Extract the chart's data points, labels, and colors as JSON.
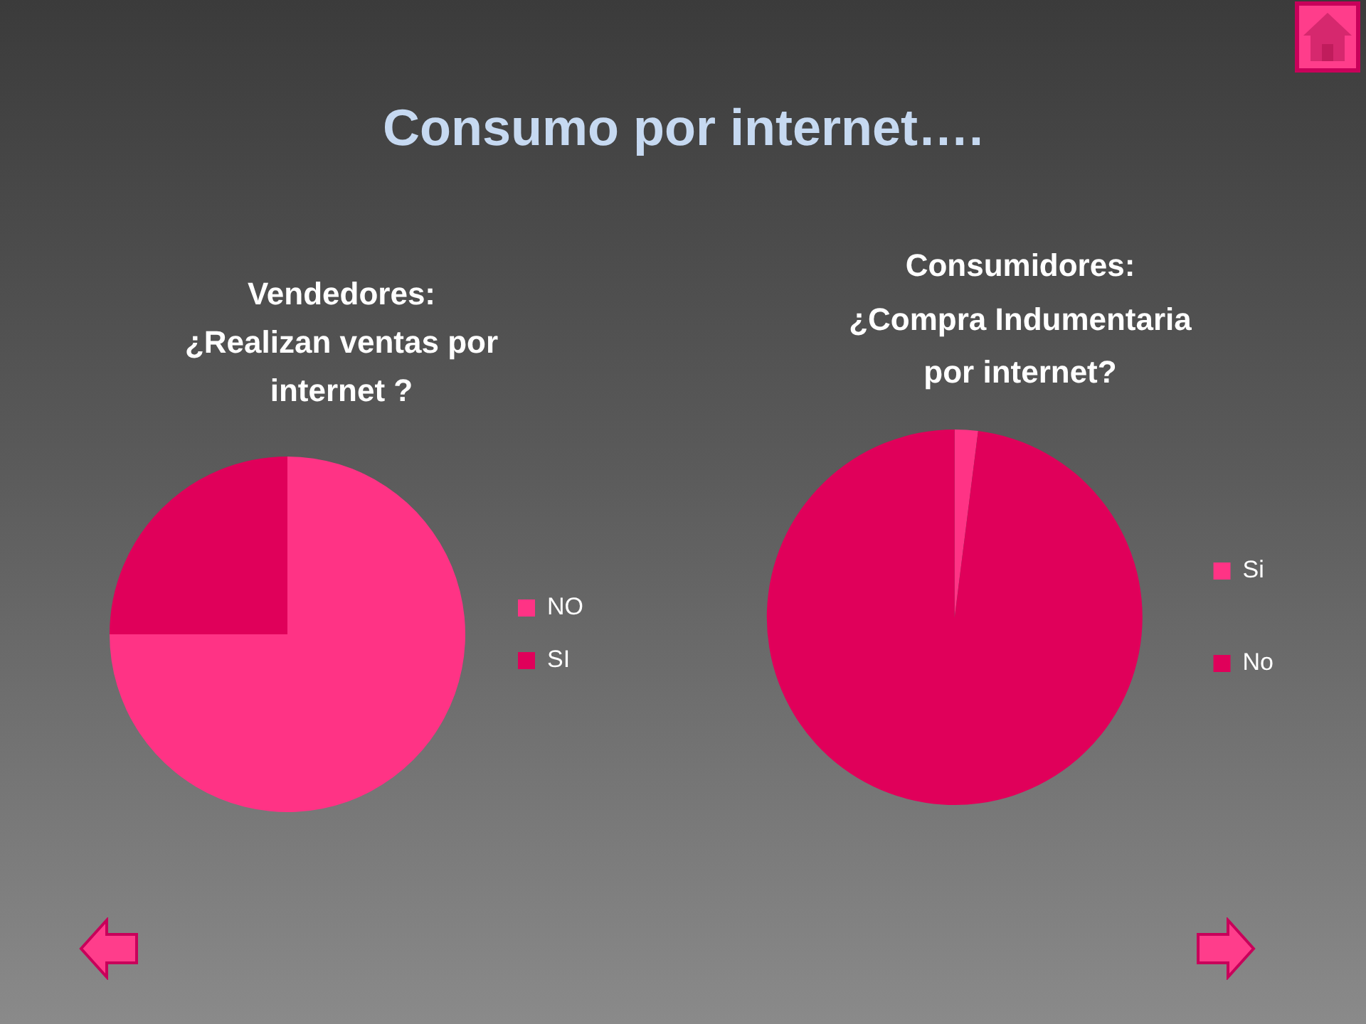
{
  "chart_data": [
    {
      "type": "other",
      "title": "Consumo por internet…."
    },
    {
      "type": "pie",
      "title": "Vendedores:\n¿Realizan ventas por\ninternet ?",
      "categories": [
        "NO",
        "SI"
      ],
      "values": [
        75,
        25
      ],
      "colors": [
        "#ff3385",
        "#e0005a"
      ],
      "legend": "right"
    },
    {
      "type": "pie",
      "title": "Consumidores:\n¿Compra Indumentaria\npor internet?",
      "categories": [
        "Si",
        "No"
      ],
      "values": [
        2,
        98
      ],
      "colors": [
        "#ff3385",
        "#e0005a"
      ],
      "legend": "right"
    }
  ]
}
